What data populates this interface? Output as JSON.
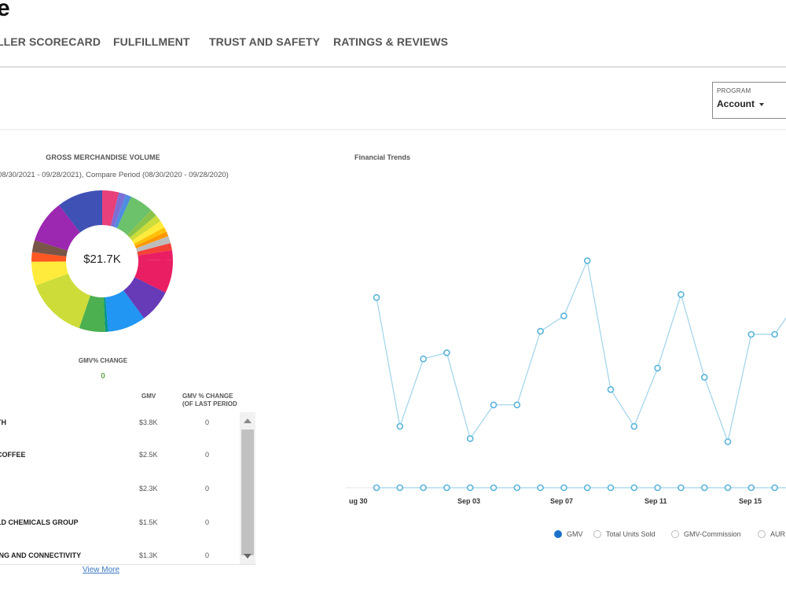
{
  "header": {
    "title": "e"
  },
  "tabs": [
    {
      "label": "LLER SCORECARD"
    },
    {
      "label": "FULFILLMENT"
    },
    {
      "label": "TRUST AND SAFETY"
    },
    {
      "label": "RATINGS & REVIEWS"
    }
  ],
  "program_filter": {
    "label": "PROGRAM",
    "value": "Account"
  },
  "gmv_panel": {
    "title": "GROSS MERCHANDISE VOLUME",
    "period": "(08/30/2021 - 09/28/2021), Compare Period (08/30/2020 - 09/28/2020)",
    "total": "$21.7K",
    "change_label": "GMV% CHANGE",
    "change_value": "0",
    "colors": {
      "segments": [
        "#e8407a",
        "#7b6fd6",
        "#4e8de0",
        "#6cc26a",
        "#8bc34a",
        "#cddc39",
        "#ffeb3b",
        "#ffc107",
        "#ff9800",
        "#bdbdbd",
        "#f44336",
        "#e91e63",
        "#e91e63",
        "#673ab7",
        "#2196f3",
        "#009688",
        "#4caf50",
        "#cddc39",
        "#ffeb3b",
        "#ff5722",
        "#795548",
        "#9c27b0",
        "#3f51b5"
      ],
      "segment_values": [
        3.5,
        1.5,
        1.2,
        5,
        1.5,
        1.5,
        1.5,
        1,
        1,
        1.5,
        1.5,
        2,
        7,
        7,
        8,
        0.6,
        5.5,
        13,
        5,
        2,
        2.5,
        9,
        9.6
      ]
    },
    "table": {
      "headers": {
        "gmv": "GMV",
        "change": "GMV % CHANGE (OF LAST PERIOD"
      },
      "rows": [
        {
          "name": "TH",
          "gmv": "$3.8K",
          "change": "0"
        },
        {
          "name": "COFFEE",
          "gmv": "$2.5K",
          "change": "0"
        },
        {
          "name": "",
          "gmv": "$2.3K",
          "change": "0"
        },
        {
          "name": "LD CHEMICALS GROUP",
          "gmv": "$1.5K",
          "change": "0"
        },
        {
          "name": "ING AND CONNECTIVITY",
          "gmv": "$1.3K",
          "change": "0"
        }
      ],
      "view_more": "View More"
    }
  },
  "trends_panel": {
    "title": "Financial Trends",
    "chart_data": {
      "type": "line",
      "x_labels": [
        "ug 30",
        "Sep 03",
        "Sep 07",
        "Sep 11",
        "Sep 15"
      ],
      "series": [
        {
          "name": "GMV",
          "values": [
            0.62,
            0.2,
            0.42,
            0.44,
            0.16,
            0.27,
            0.27,
            0.51,
            0.56,
            0.74,
            0.32,
            0.2,
            0.39,
            0.63,
            0.36,
            0.15,
            0.5,
            0.5,
            0.61
          ]
        },
        {
          "name": "Total Units Sold",
          "values": [
            0,
            0,
            0,
            0,
            0,
            0,
            0,
            0,
            0,
            0,
            0,
            0,
            0,
            0,
            0,
            0,
            0,
            0,
            0
          ]
        }
      ],
      "line_color": "#9fd3ea",
      "marker_color": "#5ab4d9"
    },
    "legend": [
      {
        "label": "GMV",
        "active": true
      },
      {
        "label": "Total Units Sold",
        "active": false
      },
      {
        "label": "GMV-Commission",
        "active": false
      },
      {
        "label": "AUR",
        "active": false
      }
    ]
  }
}
